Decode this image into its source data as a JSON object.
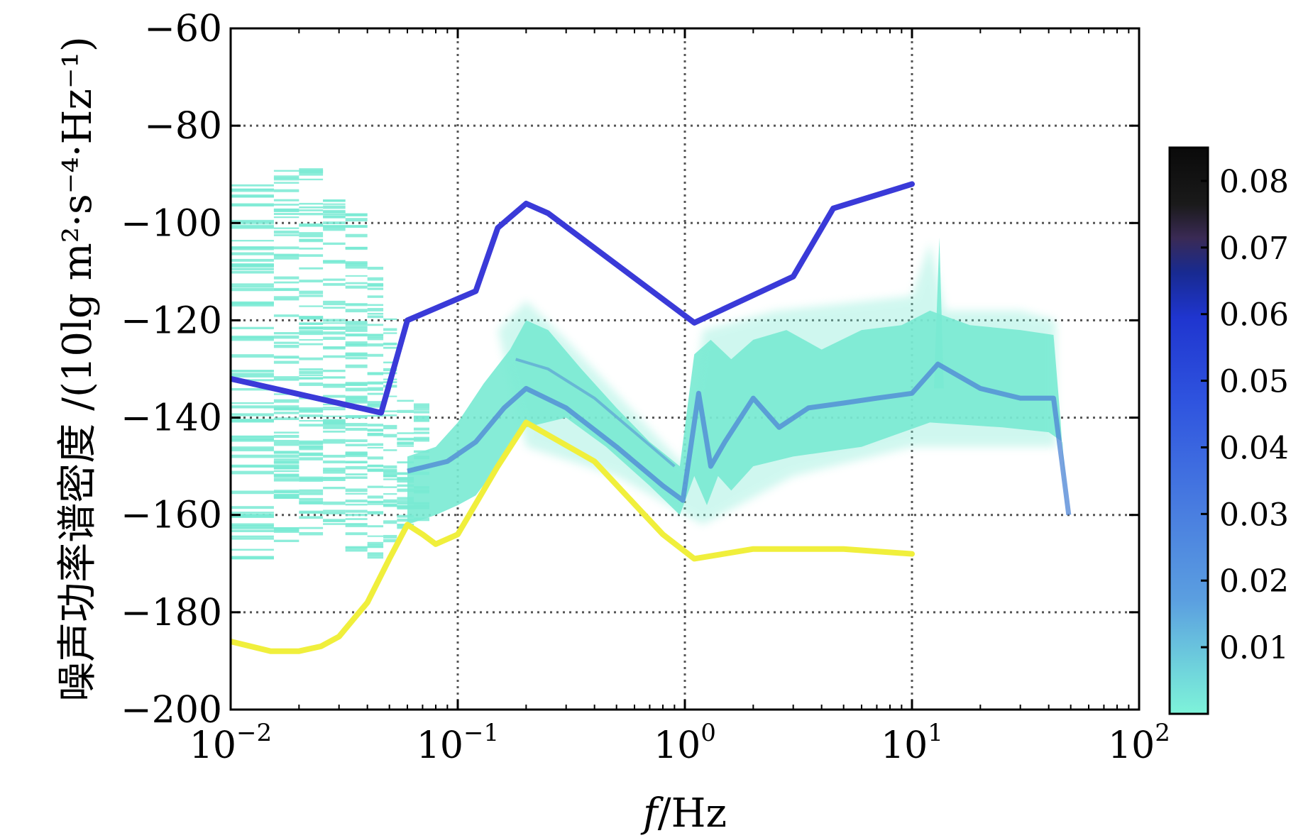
{
  "chart_data": {
    "type": "line",
    "title": "",
    "xlabel": "f /Hz",
    "xlabel_italic": "f",
    "xlabel_unit": "/Hz",
    "ylabel": "噪声功率谱密度 /(10lg m²·s⁻⁴·Hz⁻¹)",
    "xscale": "log",
    "xlim": [
      0.01,
      100
    ],
    "ylim": [
      -200,
      -60
    ],
    "grid": true,
    "x_ticks": [
      {
        "base": "10",
        "exp": "−2",
        "value": 0.01
      },
      {
        "base": "10",
        "exp": "−1",
        "value": 0.1
      },
      {
        "base": "10",
        "exp": "0",
        "value": 1
      },
      {
        "base": "10",
        "exp": "1",
        "value": 10
      },
      {
        "base": "10",
        "exp": "2",
        "value": 100
      }
    ],
    "y_ticks": [
      "−60",
      "−80",
      "−100",
      "−120",
      "−140",
      "−160",
      "−180",
      "−200"
    ],
    "y_tick_values": [
      -60,
      -80,
      -100,
      -120,
      -140,
      -160,
      -180,
      -200
    ],
    "series": [
      {
        "color": "#3a3ad8",
        "x": [
          0.01,
          0.046,
          0.06,
          0.12,
          0.15,
          0.2,
          0.25,
          1.1,
          3,
          4.5,
          10
        ],
        "y": [
          -132,
          -139,
          -120,
          -114,
          -101,
          -96,
          -98,
          -120.5,
          -111,
          -97,
          -92
        ]
      },
      {
        "color": "#f0ef3c",
        "x": [
          0.01,
          0.015,
          0.02,
          0.025,
          0.03,
          0.04,
          0.05,
          0.06,
          0.07,
          0.08,
          0.1,
          0.15,
          0.2,
          0.4,
          0.8,
          1.1,
          2,
          2.5,
          5,
          10
        ],
        "y": [
          -186,
          -188,
          -188,
          -187,
          -185,
          -178,
          -169,
          -162,
          -164,
          -166,
          -164,
          -150,
          -141,
          -149,
          -164,
          -169,
          -167,
          -167,
          -167,
          -168
        ]
      }
    ],
    "density_color": "#79ead3",
    "density_core_color": "#4d84d6",
    "colorbar": {
      "ticks": [
        "0.01",
        "0.02",
        "0.03",
        "0.04",
        "0.05",
        "0.06",
        "0.07",
        "0.08"
      ],
      "tick_values": [
        0.01,
        0.02,
        0.03,
        0.04,
        0.05,
        0.06,
        0.07,
        0.08
      ],
      "range": [
        0.0,
        0.085
      ]
    }
  }
}
